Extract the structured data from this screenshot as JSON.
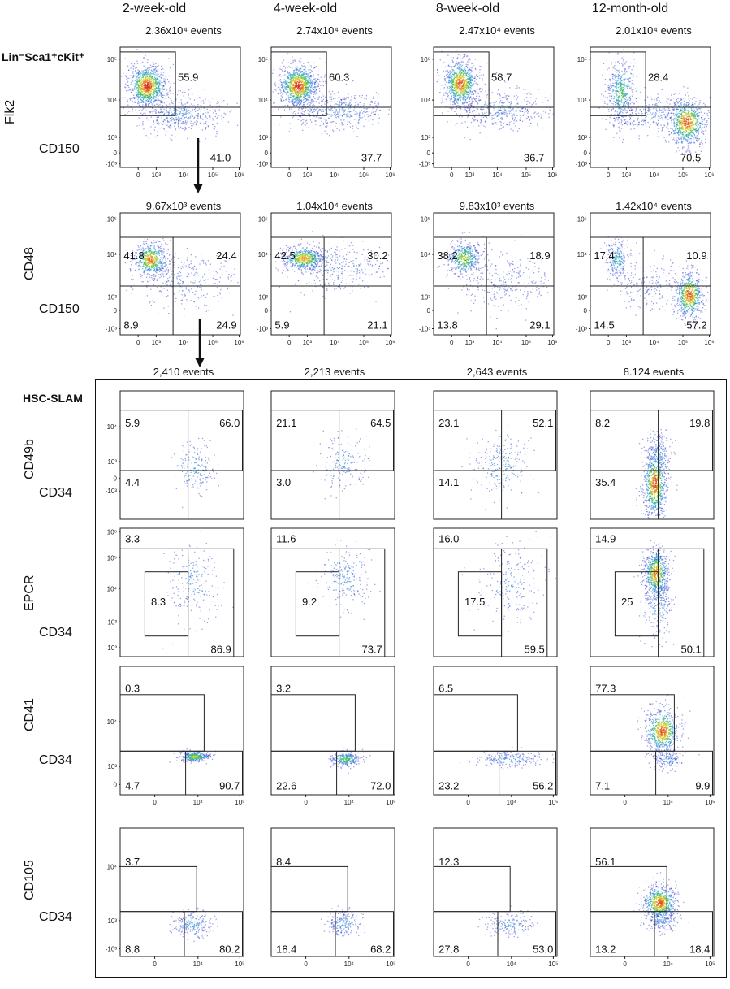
{
  "columns": [
    "2-week-old",
    "4-week-old",
    "8-week-old",
    "12-month-old"
  ],
  "labels": {
    "lsk": "Lin⁻Sca1⁺cKit⁺",
    "hsc_slam": "HSC-SLAM",
    "flk2": "Flk2",
    "cd48": "CD48",
    "cd150": "CD150",
    "cd49b": "CD49b",
    "epcr": "EPCR",
    "cd41": "CD41",
    "cd105": "CD105",
    "cd34": "CD34"
  },
  "events": {
    "row1": [
      "2.36x10⁴ events",
      "2.74x10⁴ events",
      "2.47x10⁴ events",
      "2.01x10⁴ events"
    ],
    "row2": [
      "9.67x10³ events",
      "1.04x10⁴ events",
      "9.83x10³ events",
      "1.42x10⁴ events"
    ],
    "row3": [
      "2,410 events",
      "2,213 events",
      "2,643 events",
      "8.124 events"
    ]
  },
  "chart_data": [
    {
      "type": "scatter",
      "name": "Flk2 vs CD150 (LSK)",
      "xlabel": "CD150",
      "ylabel": "Flk2",
      "gates": [
        "Flk2+ CD150-",
        "CD150+"
      ],
      "values": [
        [
          "55.9",
          "41.0"
        ],
        [
          "60.3",
          "37.7"
        ],
        [
          "58.7",
          "36.7"
        ],
        [
          "28.4",
          "70.5"
        ]
      ]
    },
    {
      "type": "scatter",
      "name": "CD48 vs CD150",
      "xlabel": "CD150",
      "ylabel": "CD48",
      "gates": [
        "top-left",
        "top-right",
        "bottom-left",
        "bottom-right"
      ],
      "values": [
        [
          "41.8",
          "24.4",
          "8.9",
          "24.9"
        ],
        [
          "42.5",
          "30.2",
          "5.9",
          "21.1"
        ],
        [
          "38.2",
          "18.9",
          "13.8",
          "29.1"
        ],
        [
          "17.4",
          "10.9",
          "14.5",
          "57.2"
        ]
      ]
    },
    {
      "type": "scatter",
      "name": "CD49b vs CD34 (HSC-SLAM)",
      "xlabel": "CD34",
      "ylabel": "CD49b",
      "gates": [
        "CD49b+ CD34-",
        "CD49b+ CD34+",
        "CD49b- CD34-"
      ],
      "values": [
        [
          "5.9",
          "66.0",
          "4.4"
        ],
        [
          "21.1",
          "64.5",
          "3.0"
        ],
        [
          "23.1",
          "52.1",
          "14.1"
        ],
        [
          "8.2",
          "19.8",
          "35.4"
        ]
      ]
    },
    {
      "type": "scatter",
      "name": "EPCR vs CD34 (HSC-SLAM)",
      "xlabel": "CD34",
      "ylabel": "EPCR",
      "gates": [
        "top",
        "EPCR+ CD34-",
        "CD34+"
      ],
      "values": [
        [
          "3.3",
          "8.3",
          "86.9"
        ],
        [
          "11.6",
          "9.2",
          "73.7"
        ],
        [
          "16.0",
          "17.5",
          "59.5"
        ],
        [
          "14.9",
          "25",
          "50.1"
        ]
      ]
    },
    {
      "type": "scatter",
      "name": "CD41 vs CD34 (HSC-SLAM)",
      "xlabel": "CD34",
      "ylabel": "CD41",
      "gates": [
        "CD41+",
        "CD41- CD34-",
        "CD41- CD34+"
      ],
      "values": [
        [
          "0.3",
          "4.7",
          "90.7"
        ],
        [
          "3.2",
          "22.6",
          "72.0"
        ],
        [
          "6.5",
          "23.2",
          "56.2"
        ],
        [
          "77.3",
          "7.1",
          "9.9"
        ]
      ]
    },
    {
      "type": "scatter",
      "name": "CD105 vs CD34 (HSC-SLAM)",
      "xlabel": "CD34",
      "ylabel": "CD105",
      "gates": [
        "CD105+",
        "CD105- CD34-",
        "CD105- CD34+"
      ],
      "values": [
        [
          "3.7",
          "8.8",
          "80.2"
        ],
        [
          "8.4",
          "18.4",
          "68.2"
        ],
        [
          "12.3",
          "27.8",
          "53.0"
        ],
        [
          "56.1",
          "13.2",
          "18.4"
        ]
      ]
    }
  ],
  "axis_ticks": {
    "r1y": [
      "10⁵",
      "10⁴",
      "10³",
      "0",
      "-10³"
    ],
    "r1x": [
      "0",
      "10³",
      "10⁴",
      "10⁵",
      "10⁶"
    ],
    "r2y": [
      "10⁵",
      "10⁴",
      "10³",
      "0",
      "-10³"
    ],
    "r2x": [
      "0",
      "10³",
      "10⁴",
      "10⁵",
      "10⁶"
    ],
    "cd49b_y": [
      "10⁴",
      "10³",
      "0",
      "-10³"
    ],
    "epcr_y": [
      "10⁶",
      "10⁵",
      "10⁴",
      "10³",
      "-10³"
    ],
    "cd41_y": [
      "10⁴",
      "10³",
      "0"
    ],
    "cd41_x": [
      "0",
      "10⁴",
      "10⁵"
    ],
    "cd105_y": [
      "10⁴",
      "10³",
      "-10³"
    ],
    "cd105_x": [
      "0",
      "10⁴",
      "10⁵"
    ]
  }
}
